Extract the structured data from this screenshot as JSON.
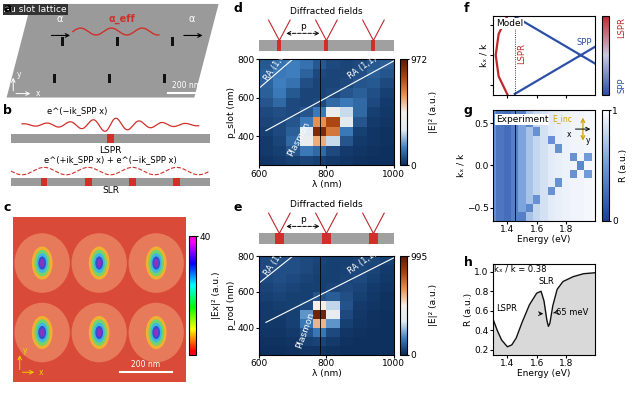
{
  "chart_data": [
    {
      "type": "heatmap",
      "panel_label": "d",
      "header": "Diffracted fields",
      "header_period": "p",
      "xlabel": "λ (nm)",
      "ylabel": "p_slot (nm)",
      "x": [
        620,
        660,
        700,
        740,
        780,
        820,
        860,
        900,
        940,
        980
      ],
      "y": [
        275,
        325,
        375,
        425,
        475,
        525,
        575,
        625,
        675,
        725,
        775
      ],
      "cells": [
        [
          20,
          30,
          40,
          50,
          40,
          30,
          20,
          15,
          10,
          10
        ],
        [
          30,
          40,
          80,
          150,
          120,
          60,
          30,
          20,
          15,
          10
        ],
        [
          30,
          50,
          120,
          400,
          600,
          300,
          80,
          30,
          20,
          15
        ],
        [
          40,
          60,
          100,
          350,
          900,
          700,
          150,
          40,
          20,
          15
        ],
        [
          50,
          60,
          80,
          150,
          650,
          800,
          350,
          80,
          30,
          20
        ],
        [
          60,
          70,
          60,
          80,
          150,
          400,
          300,
          120,
          40,
          25
        ],
        [
          80,
          120,
          60,
          50,
          60,
          120,
          150,
          120,
          60,
          30
        ],
        [
          100,
          150,
          90,
          50,
          50,
          60,
          80,
          100,
          70,
          40
        ],
        [
          110,
          160,
          140,
          70,
          50,
          50,
          60,
          80,
          90,
          60
        ],
        [
          100,
          150,
          160,
          110,
          60,
          50,
          50,
          70,
          100,
          80
        ],
        [
          90,
          140,
          160,
          140,
          90,
          60,
          50,
          60,
          90,
          100
        ]
      ],
      "xlim": [
        600,
        1000
      ],
      "xticks": [
        600,
        800,
        1000
      ],
      "ylim": [
        250,
        800
      ],
      "yticks": [
        400,
        600,
        800
      ],
      "colorbar": {
        "label": "|E|² (a.u.)",
        "range": [
          0,
          972
        ],
        "ticks": [
          0,
          972
        ]
      },
      "lines": [
        {
          "name": "RA (1,0)",
          "x": [
            600,
            700
          ],
          "y": [
            650,
            800
          ]
        },
        {
          "name": "RA (1,1)",
          "x": [
            620,
            1000
          ],
          "y": [
            430,
            790
          ]
        }
      ],
      "reference_x": 780,
      "annotations": [
        "Plasmon"
      ]
    },
    {
      "type": "heatmap",
      "panel_label": "e",
      "header": "Diffracted fields",
      "header_period": "p",
      "xlabel": "λ (nm)",
      "ylabel": "p_rod (nm)",
      "x": [
        620,
        660,
        700,
        740,
        780,
        820,
        860,
        900,
        940,
        980
      ],
      "y": [
        275,
        325,
        375,
        425,
        475,
        525,
        575,
        625,
        675,
        725,
        775
      ],
      "cells": [
        [
          10,
          10,
          15,
          20,
          20,
          15,
          10,
          10,
          10,
          10
        ],
        [
          15,
          15,
          20,
          40,
          50,
          30,
          15,
          10,
          10,
          10
        ],
        [
          20,
          20,
          30,
          80,
          150,
          60,
          20,
          15,
          10,
          10
        ],
        [
          25,
          25,
          40,
          150,
          600,
          200,
          40,
          20,
          15,
          10
        ],
        [
          30,
          30,
          40,
          200,
          950,
          400,
          60,
          25,
          15,
          10
        ],
        [
          30,
          35,
          40,
          60,
          500,
          300,
          80,
          30,
          20,
          15
        ],
        [
          40,
          50,
          40,
          40,
          80,
          100,
          70,
          40,
          25,
          15
        ],
        [
          50,
          60,
          50,
          40,
          40,
          50,
          60,
          50,
          30,
          20
        ],
        [
          60,
          70,
          60,
          50,
          40,
          40,
          50,
          60,
          40,
          25
        ],
        [
          60,
          70,
          70,
          60,
          45,
          40,
          45,
          55,
          50,
          30
        ],
        [
          60,
          70,
          70,
          60,
          50,
          40,
          40,
          50,
          55,
          40
        ]
      ],
      "xlim": [
        600,
        1000
      ],
      "xticks": [
        600,
        800,
        1000
      ],
      "ylim": [
        250,
        800
      ],
      "yticks": [
        400,
        600,
        800
      ],
      "colorbar": {
        "label": "|E|² (a.u.)",
        "range": [
          0,
          995
        ],
        "ticks": [
          0,
          995
        ]
      },
      "lines": [
        {
          "name": "RA (1,0)",
          "x": [
            600,
            700
          ],
          "y": [
            650,
            800
          ]
        },
        {
          "name": "RA (1,1)",
          "x": [
            620,
            1000
          ],
          "y": [
            430,
            790
          ]
        }
      ],
      "reference_x": 780,
      "annotations": [
        "Plasmon"
      ]
    },
    {
      "type": "line",
      "panel_label": "f",
      "title": "Model",
      "ylabel": "kₓ / k",
      "xlim": [
        1.3,
        2.0
      ],
      "xticks": [
        1.4,
        1.6,
        1.8
      ],
      "ylim": [
        -0.65,
        0.65
      ],
      "yticks": [
        -0.5,
        0,
        0.5
      ],
      "tick_labels": false,
      "series": [
        {
          "name": "LSPR",
          "color": "#c0282d",
          "x": [
            1.4,
            1.34,
            1.32,
            1.34,
            1.4
          ],
          "values": [
            0.65,
            0.35,
            0,
            -0.35,
            -0.65
          ]
        },
        {
          "name": "SPP",
          "color": "#2c4fa8",
          "x": [
            1.45,
            2.0,
            null,
            1.45,
            2.0
          ],
          "values": [
            0.64,
            -0.14,
            null,
            -0.64,
            0.14
          ]
        }
      ],
      "reference_x": 1.45,
      "colorbar": {
        "top_label": "LSPR",
        "bottom_label": "SPP"
      }
    },
    {
      "type": "heatmap",
      "panel_label": "g",
      "title": "Experiment",
      "xlabel": "Energy (eV)",
      "ylabel": "kₓ / k",
      "x": [
        1.3,
        1.35,
        1.4,
        1.45,
        1.5,
        1.55,
        1.6,
        1.65,
        1.7,
        1.75,
        1.8,
        1.85,
        1.9,
        1.95,
        2.0
      ],
      "y": [
        -0.6,
        -0.5,
        -0.4,
        -0.3,
        -0.2,
        -0.1,
        0,
        0.1,
        0.2,
        0.3,
        0.4,
        0.5,
        0.6
      ],
      "cells": [
        [
          0.45,
          0.3,
          0.25,
          0.35,
          0.35,
          0.7,
          0.8,
          0.85,
          0.9,
          0.92,
          0.93,
          0.95,
          0.95,
          0.96,
          0.97
        ],
        [
          0.45,
          0.3,
          0.25,
          0.35,
          0.55,
          0.4,
          0.8,
          0.85,
          0.9,
          0.92,
          0.93,
          0.95,
          0.95,
          0.96,
          0.97
        ],
        [
          0.45,
          0.3,
          0.25,
          0.35,
          0.55,
          0.7,
          0.45,
          0.85,
          0.9,
          0.92,
          0.93,
          0.95,
          0.95,
          0.96,
          0.97
        ],
        [
          0.45,
          0.3,
          0.25,
          0.35,
          0.55,
          0.7,
          0.8,
          0.85,
          0.45,
          0.92,
          0.93,
          0.95,
          0.95,
          0.96,
          0.97
        ],
        [
          0.45,
          0.3,
          0.25,
          0.35,
          0.55,
          0.7,
          0.8,
          0.85,
          0.9,
          0.45,
          0.93,
          0.95,
          0.95,
          0.96,
          0.97
        ],
        [
          0.45,
          0.3,
          0.25,
          0.35,
          0.55,
          0.7,
          0.8,
          0.85,
          0.9,
          0.92,
          0.93,
          0.45,
          0.95,
          0.5,
          0.97
        ],
        [
          0.45,
          0.3,
          0.25,
          0.35,
          0.55,
          0.7,
          0.8,
          0.85,
          0.9,
          0.92,
          0.93,
          0.95,
          0.4,
          0.96,
          0.97
        ],
        [
          0.45,
          0.3,
          0.25,
          0.35,
          0.55,
          0.7,
          0.8,
          0.85,
          0.9,
          0.92,
          0.93,
          0.45,
          0.95,
          0.5,
          0.97
        ],
        [
          0.45,
          0.3,
          0.25,
          0.35,
          0.55,
          0.7,
          0.8,
          0.85,
          0.9,
          0.45,
          0.93,
          0.95,
          0.95,
          0.96,
          0.97
        ],
        [
          0.45,
          0.3,
          0.25,
          0.35,
          0.55,
          0.7,
          0.8,
          0.85,
          0.45,
          0.92,
          0.93,
          0.95,
          0.95,
          0.96,
          0.97
        ],
        [
          0.45,
          0.3,
          0.25,
          0.35,
          0.55,
          0.7,
          0.45,
          0.85,
          0.9,
          0.92,
          0.93,
          0.95,
          0.95,
          0.96,
          0.97
        ],
        [
          0.45,
          0.3,
          0.25,
          0.35,
          0.55,
          0.4,
          0.8,
          0.85,
          0.9,
          0.92,
          0.93,
          0.95,
          0.95,
          0.96,
          0.97
        ],
        [
          0.45,
          0.3,
          0.25,
          0.35,
          0.35,
          0.7,
          0.8,
          0.85,
          0.9,
          0.92,
          0.93,
          0.95,
          0.95,
          0.96,
          0.97
        ]
      ],
      "xlim": [
        1.3,
        2.0
      ],
      "xticks": [
        1.4,
        1.6,
        1.8
      ],
      "ylim": [
        -0.65,
        0.65
      ],
      "yticks": [
        {
          "value": -0.5,
          "label": "−0.5"
        },
        {
          "value": 0,
          "label": "0.0"
        },
        {
          "value": 0.5,
          "label": "0.5"
        }
      ],
      "colorbar": {
        "label": "R (a.u.)",
        "range": [
          0,
          1
        ],
        "ticks": [
          0,
          1
        ]
      },
      "reference_x": 1.45,
      "inset_labels": [
        "E_inc",
        "y",
        "x"
      ]
    },
    {
      "type": "line",
      "panel_label": "h",
      "xlabel": "Energy (eV)",
      "ylabel": "R (a.u.)",
      "x": [
        1.3,
        1.33,
        1.36,
        1.4,
        1.43,
        1.46,
        1.5,
        1.55,
        1.6,
        1.63,
        1.65,
        1.67,
        1.68,
        1.69,
        1.71,
        1.74,
        1.78,
        1.85,
        1.92,
        2.0
      ],
      "values": [
        0.52,
        0.4,
        0.3,
        0.23,
        0.25,
        0.32,
        0.48,
        0.66,
        0.78,
        0.8,
        0.7,
        0.5,
        0.44,
        0.47,
        0.65,
        0.82,
        0.9,
        0.95,
        0.98,
        0.99
      ],
      "color": "#111111",
      "xlim": [
        1.3,
        2.0
      ],
      "xticks": [
        1.4,
        1.6,
        1.8
      ],
      "ylim": [
        0.15,
        1.08
      ],
      "yticks": [
        0.2,
        0.4,
        0.6,
        0.8,
        1.0
      ],
      "annotations": [
        "kₓ / k = 0.38",
        "LSPR",
        "SLR",
        "65 meV"
      ]
    }
  ],
  "diagrams": [
    {
      "panel_label": "a",
      "title": "Au slot lattice",
      "polarizability": "α",
      "effective_polarizability": "α_eff",
      "scale_bar": "200 nm",
      "axes": [
        "x",
        "y"
      ]
    },
    {
      "panel_label": "b",
      "top": {
        "label": "LSPR",
        "wave": "e^(−ik_SPP x)"
      },
      "bottom": {
        "label": "SLR",
        "wave": "e^(+ik_SPP x) + e^(−ik_SPP x)"
      }
    },
    {
      "panel_label": "c",
      "scale_bar": "200 nm",
      "axes": [
        "x",
        "y"
      ],
      "colorbar": {
        "label": "|Ex|² (a.u.)",
        "range": [
          0,
          40
        ],
        "ticks": [
          40
        ]
      }
    }
  ]
}
